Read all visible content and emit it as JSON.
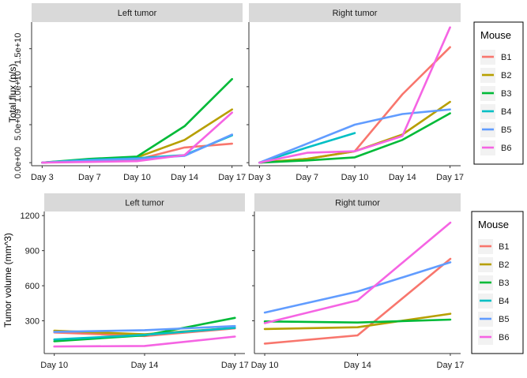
{
  "chart_data": [
    {
      "type": "line",
      "ylabel": "Total flux (p/s)",
      "yticks": [
        {
          "value": 0,
          "label": "0.0e+00"
        },
        {
          "value": 5000000000,
          "label": "5.0e+09"
        },
        {
          "value": 10000000000,
          "label": "1.0e+10"
        },
        {
          "value": 15000000000,
          "label": "1.5e+10"
        }
      ],
      "ylim": [
        -400000000,
        18500000000
      ],
      "x": [
        "Day 3",
        "Day 7",
        "Day 10",
        "Day 14",
        "Day 17"
      ],
      "legend": {
        "title": "Mouse",
        "placement": "right"
      },
      "panels": [
        {
          "title": "Left tumor",
          "series": [
            {
              "name": "B1",
              "color": "#F8766D",
              "values": [
                0,
                300000000,
                400000000,
                2000000000,
                2500000000
              ]
            },
            {
              "name": "B2",
              "color": "#B79F00",
              "values": [
                0,
                400000000,
                700000000,
                3000000000,
                7000000000
              ]
            },
            {
              "name": "B3",
              "color": "#00BA38",
              "values": [
                0,
                500000000,
                800000000,
                4800000000,
                11000000000
              ]
            },
            {
              "name": "B4",
              "color": "#00BFC4",
              "values": [
                0,
                400000000,
                600000000,
                1000000000,
                3600000000
              ]
            },
            {
              "name": "B5",
              "color": "#619CFF",
              "values": [
                0,
                300000000,
                500000000,
                900000000,
                3700000000
              ]
            },
            {
              "name": "B6",
              "color": "#F564E3",
              "values": [
                0,
                100000000,
                200000000,
                1000000000,
                6600000000
              ]
            }
          ]
        },
        {
          "title": "Right tumor",
          "series": [
            {
              "name": "B1",
              "color": "#F8766D",
              "values": [
                0,
                500000000,
                1500000000,
                9000000000,
                15200000000
              ]
            },
            {
              "name": "B2",
              "color": "#B79F00",
              "values": [
                0,
                500000000,
                1500000000,
                3700000000,
                8000000000
              ]
            },
            {
              "name": "B3",
              "color": "#00BA38",
              "values": [
                0,
                300000000,
                700000000,
                3000000000,
                6500000000
              ]
            },
            {
              "name": "B4",
              "color": "#00BFC4",
              "values": [
                0,
                2000000000,
                3900000000,
                null,
                null
              ]
            },
            {
              "name": "B5",
              "color": "#619CFF",
              "values": [
                0,
                2500000000,
                5000000000,
                6400000000,
                7000000000
              ]
            },
            {
              "name": "B6",
              "color": "#F564E3",
              "values": [
                0,
                1300000000,
                1500000000,
                3500000000,
                17800000000
              ]
            }
          ]
        }
      ]
    },
    {
      "type": "line",
      "ylabel": "Tumor volume (mm^3)",
      "yticks": [
        {
          "value": 300,
          "label": "300"
        },
        {
          "value": 600,
          "label": "600"
        },
        {
          "value": 900,
          "label": "900"
        },
        {
          "value": 1200,
          "label": "1200"
        }
      ],
      "ylim": [
        20,
        1235
      ],
      "x": [
        "Day 10",
        "Day 14",
        "Day 17"
      ],
      "legend": {
        "title": "Mouse",
        "placement": "right"
      },
      "panels": [
        {
          "title": "Left tumor",
          "series": [
            {
              "name": "B1",
              "color": "#F8766D",
              "values": [
                200,
                170,
                235
              ]
            },
            {
              "name": "B2",
              "color": "#B79F00",
              "values": [
                215,
                185,
                240
              ]
            },
            {
              "name": "B3",
              "color": "#00BA38",
              "values": [
                125,
                175,
                325
              ]
            },
            {
              "name": "B4",
              "color": "#00BFC4",
              "values": [
                140,
                180,
                240
              ]
            },
            {
              "name": "B5",
              "color": "#619CFF",
              "values": [
                205,
                220,
                255
              ]
            },
            {
              "name": "B6",
              "color": "#F564E3",
              "values": [
                80,
                85,
                165
              ]
            }
          ]
        },
        {
          "title": "Right tumor",
          "series": [
            {
              "name": "B1",
              "color": "#F8766D",
              "values": [
                105,
                175,
                830
              ]
            },
            {
              "name": "B2",
              "color": "#B79F00",
              "values": [
                230,
                245,
                360
              ]
            },
            {
              "name": "B3",
              "color": "#00BA38",
              "values": [
                295,
                285,
                310
              ]
            },
            {
              "name": "B5",
              "color": "#619CFF",
              "values": [
                370,
                550,
                800
              ]
            },
            {
              "name": "B6",
              "color": "#F564E3",
              "values": [
                280,
                475,
                1140
              ]
            }
          ]
        }
      ]
    }
  ],
  "legend_items": [
    {
      "name": "B1",
      "color": "#F8766D"
    },
    {
      "name": "B2",
      "color": "#B79F00"
    },
    {
      "name": "B3",
      "color": "#00BA38"
    },
    {
      "name": "B4",
      "color": "#00BFC4"
    },
    {
      "name": "B5",
      "color": "#619CFF"
    },
    {
      "name": "B6",
      "color": "#F564E3"
    }
  ]
}
